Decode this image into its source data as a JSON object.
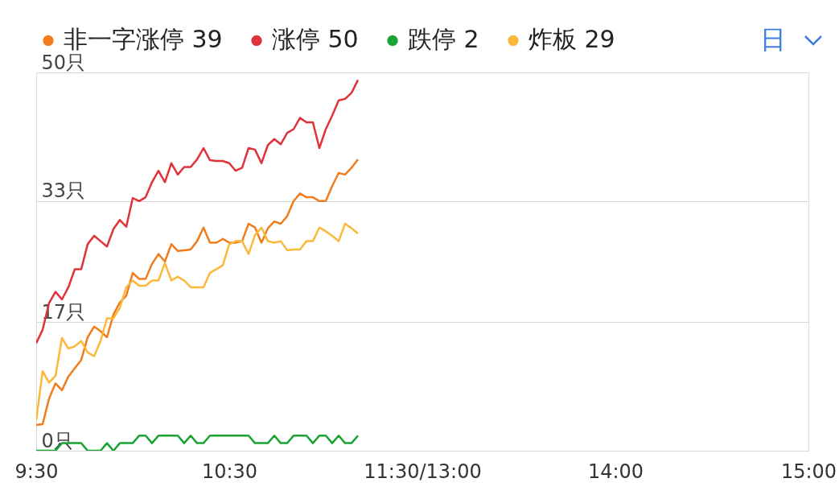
{
  "chart_data": {
    "type": "line",
    "annotations": [
      "日"
    ],
    "categories": [
      "9:30",
      null,
      null,
      null,
      null,
      null,
      null,
      null,
      null,
      null,
      null,
      null,
      null,
      null,
      null,
      null,
      null,
      null,
      null,
      null,
      null,
      null,
      null,
      null,
      null,
      null,
      null,
      null,
      null,
      null,
      "10:30",
      null,
      null,
      null,
      null,
      null,
      null,
      null,
      null,
      null,
      null,
      null,
      null,
      null,
      null,
      null,
      null,
      null,
      null,
      null,
      null,
      null,
      null,
      null,
      null,
      null,
      null,
      null,
      null,
      null,
      "11:30/13:00",
      null,
      null,
      null,
      null,
      null,
      null,
      null,
      null,
      null,
      null,
      null,
      null,
      null,
      null,
      null,
      null,
      null,
      null,
      null,
      null,
      null,
      null,
      null,
      null,
      null,
      null,
      null,
      null,
      null,
      "14:00",
      null,
      null,
      null,
      null,
      null,
      null,
      null,
      null,
      null,
      null,
      null,
      null,
      null,
      null,
      null,
      null,
      null,
      null,
      null,
      null,
      null,
      null,
      null,
      null,
      null,
      null,
      null,
      null,
      null,
      "15:00"
    ],
    "series": [
      {
        "name": "非一字涨停 39",
        "color": "#f07c1d",
        "values": [
          3.4,
          3.5,
          6.9,
          8.9,
          8,
          9.8,
          10.9,
          12,
          15,
          16.4,
          15.8,
          15,
          18,
          19.6,
          20.5,
          23.5,
          22.7,
          22.7,
          24.7,
          26,
          25,
          27.3,
          26.4,
          26.5,
          26.6,
          27.7,
          29.5,
          27.5,
          27.5,
          28,
          27.5,
          27.5,
          27.7,
          30,
          29.5,
          27.5,
          29.4,
          30.3,
          30,
          31,
          33,
          34,
          33.5,
          33.5,
          33,
          33,
          35,
          36.7,
          36.5,
          37.4,
          38.5,
          null,
          null,
          null,
          null,
          null,
          null,
          null,
          null,
          null,
          null,
          null,
          null,
          null,
          null,
          null,
          null,
          null,
          null,
          null,
          null,
          null,
          null,
          null,
          null,
          null,
          null,
          null,
          null,
          null,
          null,
          null,
          null,
          null,
          null,
          null,
          null,
          null,
          null,
          null,
          null,
          null,
          null,
          null,
          null,
          null,
          null,
          null,
          null,
          null,
          null,
          null,
          null,
          null,
          null,
          null,
          null,
          null,
          null,
          null,
          null,
          null,
          null,
          null,
          null,
          null,
          null,
          null,
          null,
          null,
          null
        ]
      },
      {
        "name": "涨停 50",
        "color": "#e0323a",
        "values": [
          14.2,
          16,
          19.5,
          21,
          20,
          21.6,
          24,
          24,
          27.3,
          28.4,
          27.7,
          27,
          29.3,
          30.5,
          29.6,
          33.4,
          33,
          33.5,
          35.5,
          37,
          35.5,
          38,
          36.5,
          37.5,
          37.5,
          38.5,
          40,
          38.4,
          38.3,
          38.3,
          38,
          37,
          37.4,
          40,
          39.8,
          38,
          40.4,
          41.2,
          40.5,
          42,
          42.5,
          44,
          43.4,
          43.4,
          40,
          42.5,
          44.3,
          46.3,
          46.5,
          47.3,
          49,
          null,
          null,
          null,
          null,
          null,
          null,
          null,
          null,
          null,
          null,
          null,
          null,
          null,
          null,
          null,
          null,
          null,
          null,
          null,
          null,
          null,
          null,
          null,
          null,
          null,
          null,
          null,
          null,
          null,
          null,
          null,
          null,
          null,
          null,
          null,
          null,
          null,
          null,
          null,
          null,
          null,
          null,
          null,
          null,
          null,
          null,
          null,
          null,
          null,
          null,
          null,
          null,
          null,
          null,
          null,
          null,
          null,
          null,
          null,
          null,
          null,
          null,
          null,
          null,
          null,
          null,
          null,
          null,
          null,
          null
        ]
      },
      {
        "name": "跌停 2",
        "color": "#1aa333",
        "values": [
          0,
          0,
          0,
          0,
          1,
          1,
          1,
          1,
          0,
          0,
          0,
          1,
          0,
          1,
          1,
          1,
          2,
          2,
          1,
          2,
          2,
          2,
          2,
          1,
          2,
          1,
          1,
          2,
          2,
          2,
          2,
          2,
          2,
          2,
          1,
          1,
          1,
          2,
          1,
          1,
          2,
          2,
          2,
          1,
          2,
          2,
          1,
          2,
          1,
          1,
          2,
          null,
          null,
          null,
          null,
          null,
          null,
          null,
          null,
          null,
          null,
          null,
          null,
          null,
          null,
          null,
          null,
          null,
          null,
          null,
          null,
          null,
          null,
          null,
          null,
          null,
          null,
          null,
          null,
          null,
          null,
          null,
          null,
          null,
          null,
          null,
          null,
          null,
          null,
          null,
          null,
          null,
          null,
          null,
          null,
          null,
          null,
          null,
          null,
          null,
          null,
          null,
          null,
          null,
          null,
          null,
          null,
          null,
          null,
          null,
          null,
          null,
          null,
          null,
          null,
          null,
          null,
          null,
          null,
          null,
          null
        ]
      },
      {
        "name": "炸板 29",
        "color": "#fbb83a",
        "values": [
          4,
          10.5,
          9,
          9.9,
          14.9,
          13.5,
          13.8,
          14.5,
          13,
          12.5,
          14.5,
          17.5,
          17.5,
          18.9,
          21.6,
          22.5,
          21.8,
          21.8,
          22.5,
          22.5,
          24.8,
          22.5,
          23,
          22.5,
          21.6,
          21.6,
          21.6,
          23.5,
          24,
          24.5,
          27.3,
          27.7,
          27.7,
          26,
          28.5,
          29.5,
          27.7,
          27.5,
          27.7,
          26.5,
          26.6,
          26.6,
          27.7,
          27.7,
          29.5,
          29,
          28.4,
          27.7,
          30,
          29.4,
          28.7,
          null,
          null,
          null,
          null,
          null,
          null,
          null,
          null,
          null,
          null,
          null,
          null,
          null,
          null,
          null,
          null,
          null,
          null,
          null,
          null,
          null,
          null,
          null,
          null,
          null,
          null,
          null,
          null,
          null,
          null,
          null,
          null,
          null,
          null,
          null,
          null,
          null,
          null,
          null,
          null,
          null,
          null,
          null,
          null,
          null,
          null,
          null,
          null,
          null,
          null,
          null,
          null,
          null,
          null,
          null,
          null,
          null,
          null,
          null,
          null,
          null,
          null,
          null,
          null,
          null,
          null,
          null,
          null,
          null,
          null
        ]
      }
    ],
    "ylim": [
      0,
      50
    ],
    "yticks": [
      {
        "value": 0,
        "label": "0只"
      },
      {
        "value": 17,
        "label": "17只"
      },
      {
        "value": 33,
        "label": "33只"
      },
      {
        "value": 50,
        "label": "50只"
      }
    ],
    "grid": "y",
    "legend": "top",
    "marker": "none",
    "line_style": "solid"
  }
}
